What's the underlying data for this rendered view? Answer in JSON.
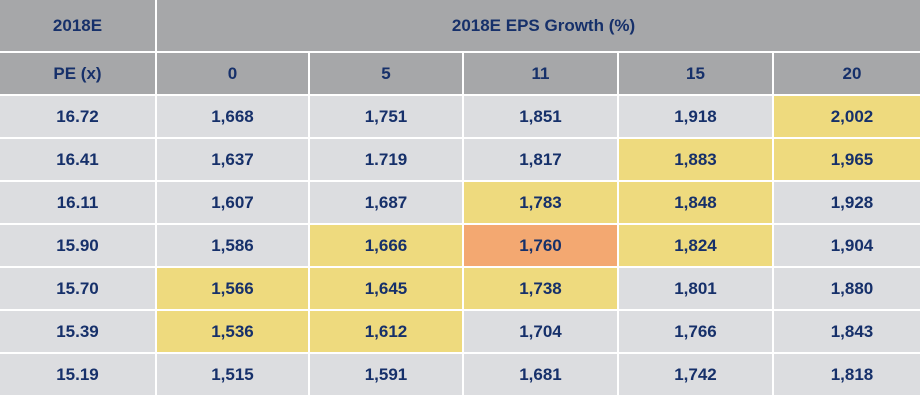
{
  "chart_data": {
    "type": "table",
    "title": "2018E EPS Growth (%)",
    "corner_label": "2018E",
    "row_header_label": "PE (x)",
    "columns": [
      "0",
      "5",
      "11",
      "15",
      "20"
    ],
    "rows": [
      {
        "pe": "16.72",
        "values": [
          "1,668",
          "1,751",
          "1,851",
          "1,918",
          "2,002"
        ],
        "highlight": [
          "",
          "",
          "",
          "",
          "yellow"
        ]
      },
      {
        "pe": "16.41",
        "values": [
          "1,637",
          "1.719",
          "1,817",
          "1,883",
          "1,965"
        ],
        "highlight": [
          "",
          "",
          "",
          "yellow",
          "yellow"
        ]
      },
      {
        "pe": "16.11",
        "values": [
          "1,607",
          "1,687",
          "1,783",
          "1,848",
          "1,928"
        ],
        "highlight": [
          "",
          "",
          "yellow",
          "yellow",
          ""
        ]
      },
      {
        "pe": "15.90",
        "values": [
          "1,586",
          "1,666",
          "1,760",
          "1,824",
          "1,904"
        ],
        "highlight": [
          "",
          "yellow",
          "orange",
          "yellow",
          ""
        ]
      },
      {
        "pe": "15.70",
        "values": [
          "1,566",
          "1,645",
          "1,738",
          "1,801",
          "1,880"
        ],
        "highlight": [
          "yellow",
          "yellow",
          "yellow",
          "",
          ""
        ]
      },
      {
        "pe": "15.39",
        "values": [
          "1,536",
          "1,612",
          "1,704",
          "1,766",
          "1,843"
        ],
        "highlight": [
          "yellow",
          "yellow",
          "",
          "",
          ""
        ]
      },
      {
        "pe": "15.19",
        "values": [
          "1,515",
          "1,591",
          "1,681",
          "1,742",
          "1,818"
        ],
        "highlight": [
          "",
          "",
          "",
          "",
          ""
        ]
      }
    ],
    "colors": {
      "header": "#a6a7a9",
      "cell": "#dcdde0",
      "yellow": "#eeda7e",
      "orange": "#f3a871",
      "text": "#16306a"
    }
  }
}
